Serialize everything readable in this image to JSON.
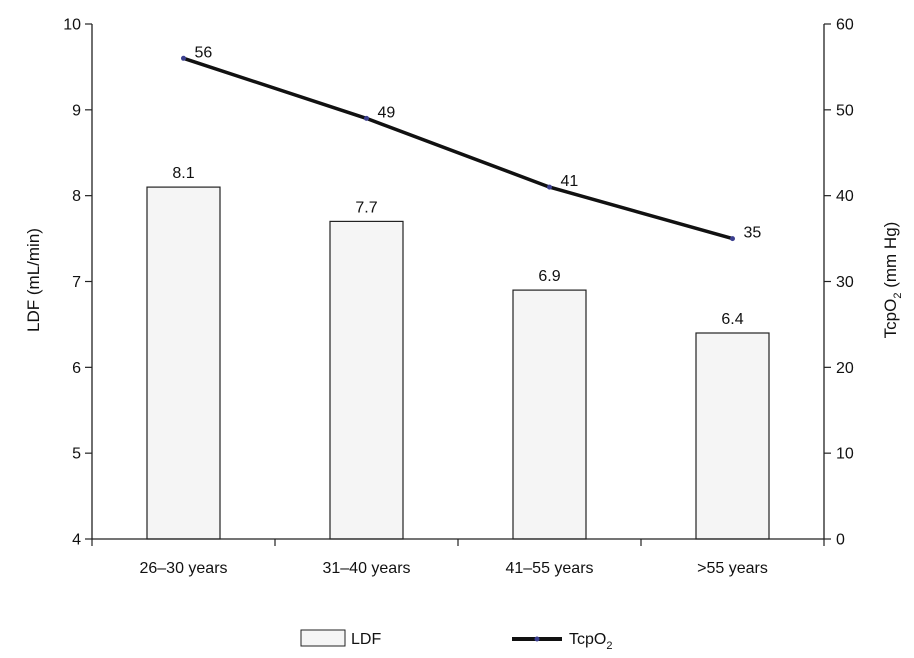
{
  "chart_data": {
    "type": "bar",
    "categories": [
      "26–30 years",
      "31–40 years",
      "41–55 years",
      ">55 years"
    ],
    "series": [
      {
        "name": "LDF",
        "type": "bar",
        "axis": "left",
        "values": [
          8.1,
          7.7,
          6.9,
          6.4
        ],
        "data_labels": [
          "8.1",
          "7.7",
          "6.9",
          "6.4"
        ],
        "color": "#f5f5f5",
        "stroke": "#222222"
      },
      {
        "name": "TcpO",
        "name_subscript": "2",
        "type": "line",
        "axis": "right",
        "values": [
          56,
          49,
          41,
          35
        ],
        "data_labels": [
          "56",
          "49",
          "41",
          "35"
        ],
        "color": "#111111",
        "marker_color": "#3b3f8f"
      }
    ],
    "y_left": {
      "label": "LDF (mL/min)",
      "range": [
        4,
        10
      ],
      "ticks": [
        "4",
        "5",
        "6",
        "7",
        "8",
        "9",
        "10"
      ]
    },
    "y_right": {
      "label": "TcpO",
      "label_subscript": "2",
      "label_suffix": " (mm Hg)",
      "range": [
        0,
        60
      ],
      "ticks": [
        "0",
        "10",
        "20",
        "30",
        "40",
        "50",
        "60"
      ]
    },
    "grid": false,
    "legend_position": "bottom"
  }
}
